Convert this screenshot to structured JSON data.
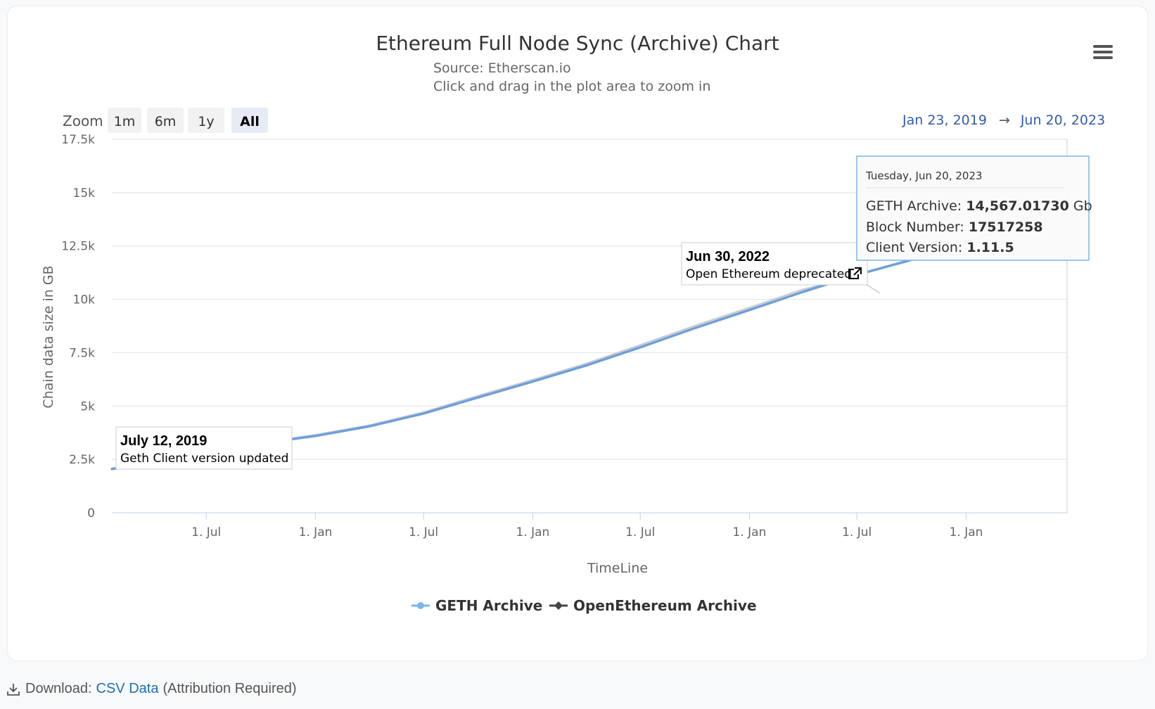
{
  "chart_data": {
    "type": "line",
    "title": "Ethereum Full Node Sync (Archive) Chart",
    "subtitle_source": "Source: Etherscan.io",
    "subtitle_hint": "Click and drag in the plot area to zoom in",
    "xlabel": "TimeLine",
    "ylabel": "Chain data size in GB",
    "x_ticks": [
      "1. Jul",
      "1. Jan",
      "1. Jul",
      "1. Jan",
      "1. Jul",
      "1. Jan",
      "1. Jul",
      "1. Jan"
    ],
    "y_ticks": [
      "0",
      "2.5k",
      "5k",
      "7.5k",
      "10k",
      "12.5k",
      "15k",
      "17.5k"
    ],
    "ylim": [
      0,
      17500
    ],
    "xlim": [
      "2019-01-23",
      "2023-06-20"
    ],
    "grid": true,
    "legend_position": "bottom-center",
    "series": [
      {
        "name": "GETH Archive",
        "color": "#7cb5ec",
        "x": [
          "2019-01-23",
          "2019-04-01",
          "2019-07-01",
          "2019-10-01",
          "2020-01-01",
          "2020-04-01",
          "2020-07-01",
          "2020-10-01",
          "2021-01-01",
          "2021-04-01",
          "2021-07-01",
          "2021-10-01",
          "2022-01-01",
          "2022-04-01",
          "2022-07-01",
          "2022-10-01",
          "2023-01-01",
          "2023-04-01",
          "2023-06-20"
        ],
        "values": [
          2050,
          2300,
          2750,
          3250,
          3600,
          4050,
          4650,
          5400,
          6150,
          6900,
          7750,
          8650,
          9500,
          10350,
          11150,
          11850,
          12650,
          13650,
          14567.0173
        ]
      },
      {
        "name": "OpenEthereum Archive",
        "color": "#434348",
        "x": [
          "2019-01-23",
          "2019-04-01",
          "2019-07-01",
          "2019-10-01",
          "2020-01-01",
          "2020-04-01",
          "2020-07-01",
          "2020-10-01",
          "2021-01-01",
          "2021-04-01",
          "2021-07-01",
          "2021-10-01",
          "2022-01-01",
          "2022-04-01",
          "2022-06-30"
        ],
        "values": [
          2080,
          2330,
          2790,
          3290,
          3650,
          4100,
          4710,
          5480,
          6230,
          6990,
          7860,
          8760,
          9610,
          10460,
          11060
        ]
      }
    ],
    "annotations": [
      {
        "date": "2019-07-12",
        "title": "July 12, 2019",
        "text": "Geth Client version updated"
      },
      {
        "date": "2022-06-30",
        "title": "Jun 30, 2022",
        "text": "Open Ethereum deprecated"
      }
    ],
    "tooltip": {
      "date": "Tuesday, Jun 20, 2023",
      "rows": [
        {
          "label": "GETH Archive: ",
          "value": "14,567.01730",
          "unit": " Gb"
        },
        {
          "label": "Block Number: ",
          "value": "17517258",
          "unit": ""
        },
        {
          "label": "Client Version: ",
          "value": "1.11.5",
          "unit": ""
        }
      ]
    }
  },
  "controls": {
    "zoom_label": "Zoom",
    "zoom_buttons": [
      "1m",
      "6m",
      "1y",
      "All"
    ],
    "zoom_active": "All",
    "range_from": "Jan 23, 2019",
    "range_arrow": "→",
    "range_to": "Jun 20, 2023",
    "menu_icon": "hamburger-menu-icon"
  },
  "footer": {
    "prefix": "Download: ",
    "link": "CSV Data",
    "suffix": "(Attribution Required)",
    "icon": "download-icon"
  }
}
